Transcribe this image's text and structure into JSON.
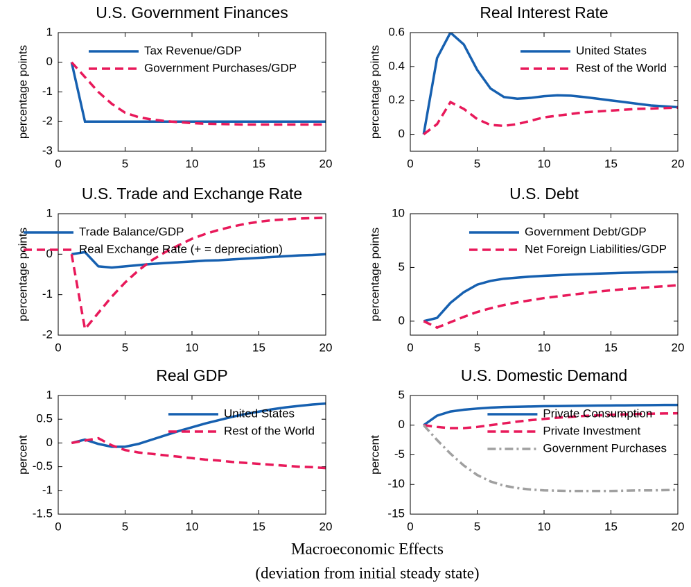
{
  "chart_data": [
    {
      "type": "line",
      "title": "U.S. Government Finances",
      "ylabel": "percentage points",
      "legend": "upper left",
      "x": [
        1,
        2,
        3,
        4,
        5,
        6,
        7,
        8,
        9,
        10,
        11,
        12,
        13,
        14,
        15,
        16,
        17,
        18,
        19,
        20
      ],
      "xlim": [
        0,
        20
      ],
      "xticks": [
        0,
        5,
        10,
        15,
        20
      ],
      "ylim": [
        -3,
        1
      ],
      "yticks": [
        -3,
        -2,
        -1,
        0,
        1
      ],
      "series": [
        {
          "name": "Tax Revenue/GDP",
          "color": "#1660b0",
          "style": "solid",
          "values": [
            0,
            -2,
            -2,
            -2,
            -2,
            -2,
            -2,
            -2,
            -2,
            -2,
            -2,
            -2,
            -2,
            -2,
            -2,
            -2,
            -2,
            -2,
            -2,
            -2
          ]
        },
        {
          "name": "Government Purchases/GDP",
          "color": "#e8195a",
          "style": "dashed",
          "values": [
            0,
            -0.5,
            -1.0,
            -1.4,
            -1.7,
            -1.85,
            -1.93,
            -1.98,
            -2.02,
            -2.05,
            -2.07,
            -2.08,
            -2.09,
            -2.1,
            -2.1,
            -2.1,
            -2.1,
            -2.1,
            -2.1,
            -2.1
          ]
        }
      ]
    },
    {
      "type": "line",
      "title": "Real Interest Rate",
      "ylabel": "percentage points",
      "legend": "upper right",
      "x": [
        1,
        2,
        3,
        4,
        5,
        6,
        7,
        8,
        9,
        10,
        11,
        12,
        13,
        14,
        15,
        16,
        17,
        18,
        19,
        20
      ],
      "xlim": [
        0,
        20
      ],
      "xticks": [
        0,
        5,
        10,
        15,
        20
      ],
      "ylim": [
        -0.1,
        0.6
      ],
      "yticks": [
        0,
        0.2,
        0.4,
        0.6
      ],
      "series": [
        {
          "name": "United States",
          "color": "#1660b0",
          "style": "solid",
          "values": [
            0,
            0.45,
            0.6,
            0.53,
            0.38,
            0.27,
            0.22,
            0.21,
            0.215,
            0.225,
            0.23,
            0.228,
            0.22,
            0.21,
            0.2,
            0.19,
            0.18,
            0.17,
            0.165,
            0.16
          ]
        },
        {
          "name": "Rest of the World",
          "color": "#e8195a",
          "style": "dashed",
          "values": [
            0,
            0.06,
            0.19,
            0.15,
            0.09,
            0.055,
            0.05,
            0.06,
            0.08,
            0.1,
            0.11,
            0.12,
            0.13,
            0.135,
            0.14,
            0.145,
            0.15,
            0.152,
            0.155,
            0.157
          ]
        }
      ]
    },
    {
      "type": "line",
      "title": "U.S. Trade and Exchange Rate",
      "ylabel": "percentage points",
      "legend": "left",
      "x": [
        1,
        2,
        3,
        4,
        5,
        6,
        7,
        8,
        9,
        10,
        11,
        12,
        13,
        14,
        15,
        16,
        17,
        18,
        19,
        20
      ],
      "xlim": [
        0,
        20
      ],
      "xticks": [
        0,
        5,
        10,
        15,
        20
      ],
      "ylim": [
        -2,
        1
      ],
      "yticks": [
        -2,
        -1,
        0,
        1
      ],
      "series": [
        {
          "name": "Trade Balance/GDP",
          "color": "#1660b0",
          "style": "solid",
          "values": [
            0,
            0.05,
            -0.3,
            -0.33,
            -0.3,
            -0.27,
            -0.24,
            -0.22,
            -0.2,
            -0.18,
            -0.16,
            -0.15,
            -0.13,
            -0.11,
            -0.09,
            -0.07,
            -0.05,
            -0.03,
            -0.02,
            0
          ]
        },
        {
          "name": "Real Exchange Rate (+ = depreciation)",
          "color": "#e8195a",
          "style": "dashed",
          "values": [
            0,
            -1.85,
            -1.45,
            -1.05,
            -0.7,
            -0.4,
            -0.15,
            0.05,
            0.22,
            0.38,
            0.5,
            0.6,
            0.68,
            0.75,
            0.8,
            0.84,
            0.86,
            0.88,
            0.89,
            0.9
          ]
        }
      ]
    },
    {
      "type": "line",
      "title": "U.S. Debt",
      "ylabel": "percentage points",
      "legend": "upper right",
      "x": [
        1,
        2,
        3,
        4,
        5,
        6,
        7,
        8,
        9,
        10,
        11,
        12,
        13,
        14,
        15,
        16,
        17,
        18,
        19,
        20
      ],
      "xlim": [
        0,
        20
      ],
      "xticks": [
        0,
        5,
        10,
        15,
        20
      ],
      "ylim": [
        -1.3,
        10
      ],
      "yticks": [
        0,
        5,
        10
      ],
      "series": [
        {
          "name": "Government Debt/GDP",
          "color": "#1660b0",
          "style": "solid",
          "values": [
            0,
            0.3,
            1.7,
            2.7,
            3.4,
            3.75,
            3.95,
            4.05,
            4.15,
            4.22,
            4.28,
            4.33,
            4.38,
            4.42,
            4.46,
            4.5,
            4.53,
            4.56,
            4.58,
            4.6
          ]
        },
        {
          "name": "Net Foreign Liabilities/GDP",
          "color": "#e8195a",
          "style": "dashed",
          "values": [
            0,
            -0.6,
            -0.1,
            0.4,
            0.85,
            1.2,
            1.5,
            1.75,
            1.95,
            2.15,
            2.3,
            2.45,
            2.6,
            2.75,
            2.87,
            2.98,
            3.08,
            3.17,
            3.25,
            3.35
          ]
        }
      ]
    },
    {
      "type": "line",
      "title": "Real GDP",
      "ylabel": "percent",
      "legend": "upper right",
      "x": [
        1,
        2,
        3,
        4,
        5,
        6,
        7,
        8,
        9,
        10,
        11,
        12,
        13,
        14,
        15,
        16,
        17,
        18,
        19,
        20
      ],
      "xlim": [
        0,
        20
      ],
      "xticks": [
        0,
        5,
        10,
        15,
        20
      ],
      "ylim": [
        -1.5,
        1
      ],
      "yticks": [
        -1.5,
        -1,
        -0.5,
        0,
        0.5,
        1
      ],
      "series": [
        {
          "name": "United States",
          "color": "#1660b0",
          "style": "solid",
          "values": [
            0,
            0.07,
            -0.02,
            -0.08,
            -0.08,
            -0.02,
            0.07,
            0.16,
            0.25,
            0.33,
            0.41,
            0.48,
            0.55,
            0.61,
            0.66,
            0.71,
            0.75,
            0.78,
            0.81,
            0.83
          ]
        },
        {
          "name": "Rest of the World",
          "color": "#e8195a",
          "style": "dashed",
          "values": [
            0,
            0.05,
            0.1,
            -0.05,
            -0.15,
            -0.2,
            -0.23,
            -0.26,
            -0.29,
            -0.32,
            -0.35,
            -0.37,
            -0.4,
            -0.42,
            -0.44,
            -0.46,
            -0.48,
            -0.5,
            -0.51,
            -0.53
          ]
        }
      ]
    },
    {
      "type": "line",
      "title": "U.S. Domestic Demand",
      "ylabel": "percent",
      "legend": "upper right",
      "x": [
        1,
        2,
        3,
        4,
        5,
        6,
        7,
        8,
        9,
        10,
        11,
        12,
        13,
        14,
        15,
        16,
        17,
        18,
        19,
        20
      ],
      "xlim": [
        0,
        20
      ],
      "xticks": [
        0,
        5,
        10,
        15,
        20
      ],
      "ylim": [
        -15,
        5
      ],
      "yticks": [
        -15,
        -10,
        -5,
        0,
        5
      ],
      "series": [
        {
          "name": "Private Consumption",
          "color": "#1660b0",
          "style": "solid",
          "values": [
            0,
            1.6,
            2.3,
            2.6,
            2.8,
            2.95,
            3.05,
            3.1,
            3.15,
            3.2,
            3.22,
            3.25,
            3.28,
            3.3,
            3.32,
            3.34,
            3.36,
            3.38,
            3.4,
            3.4
          ]
        },
        {
          "name": "Private Investment",
          "color": "#e8195a",
          "style": "dashed",
          "values": [
            0,
            -0.3,
            -0.5,
            -0.5,
            -0.3,
            0,
            0.3,
            0.6,
            0.85,
            1.05,
            1.25,
            1.4,
            1.55,
            1.65,
            1.75,
            1.82,
            1.88,
            1.93,
            1.97,
            2.0
          ]
        },
        {
          "name": "Government Purchases",
          "color": "#a0a0a0",
          "style": "dashdot",
          "values": [
            0,
            -2.5,
            -4.8,
            -6.8,
            -8.4,
            -9.5,
            -10.2,
            -10.6,
            -10.85,
            -11,
            -11.05,
            -11.1,
            -11.1,
            -11.1,
            -11.1,
            -11.05,
            -11.0,
            -11.0,
            -10.95,
            -10.9
          ]
        }
      ]
    }
  ],
  "caption": [
    "Macroeconomic Effects",
    "(deviation from initial steady state)"
  ]
}
